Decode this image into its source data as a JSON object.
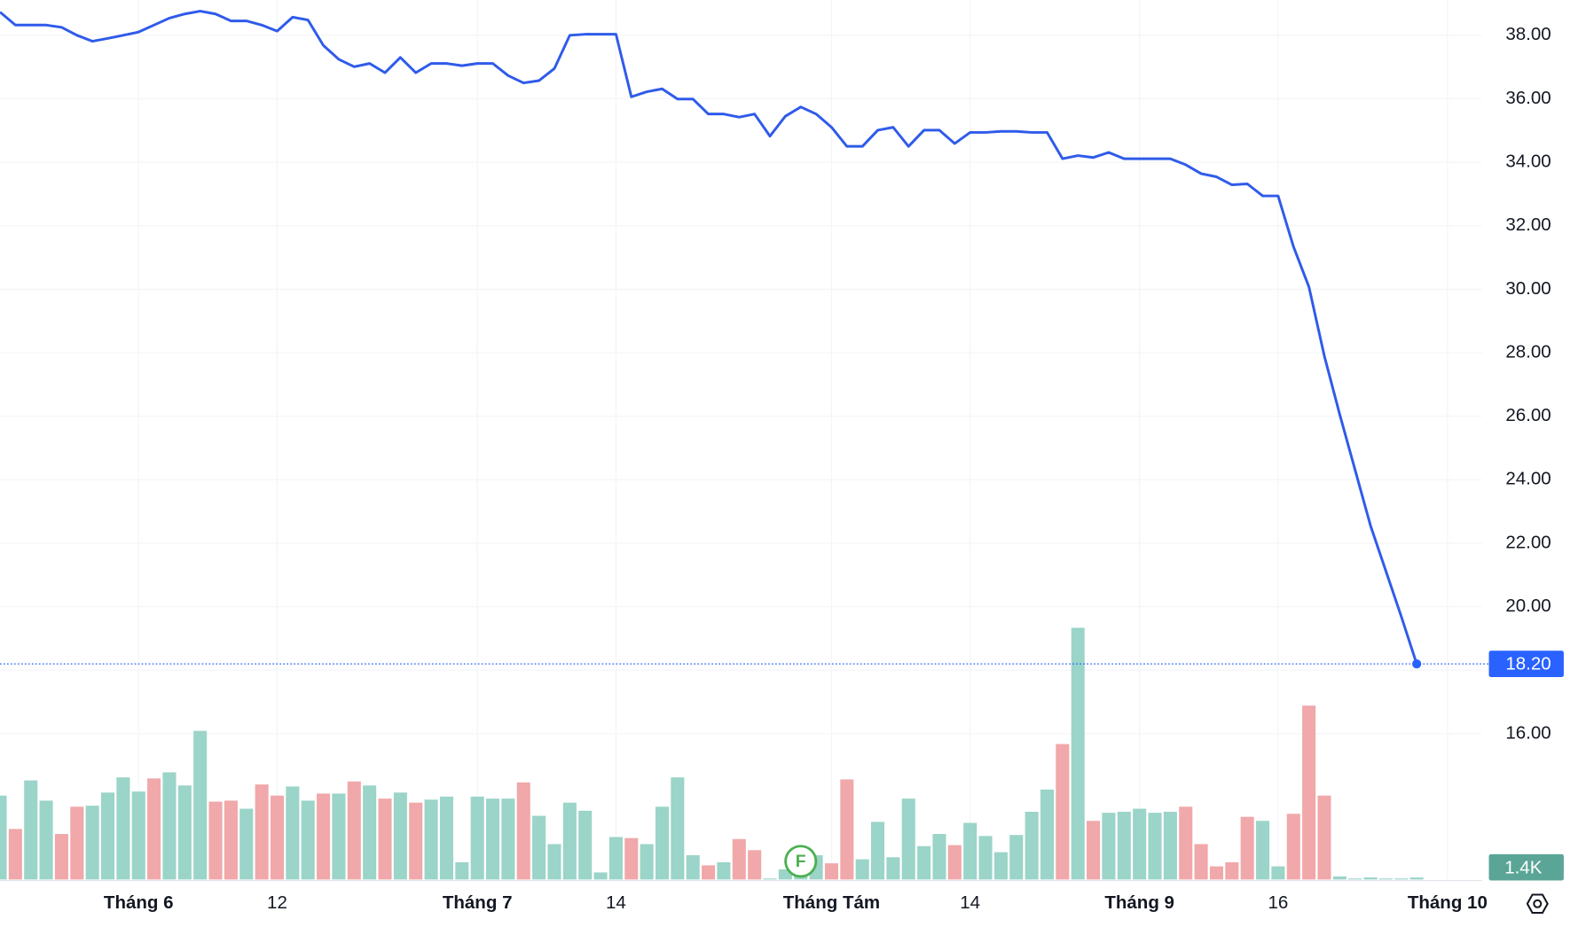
{
  "chart_data": [
    {
      "type": "line",
      "color": "#2f5bea",
      "marker_color": "#2962ff",
      "values": [
        38.73,
        38.32,
        38.32,
        38.32,
        38.25,
        38.0,
        37.81,
        37.9,
        38.0,
        38.1,
        38.32,
        38.54,
        38.67,
        38.76,
        38.67,
        38.45,
        38.45,
        38.32,
        38.13,
        38.57,
        38.48,
        37.68,
        37.24,
        37.01,
        37.11,
        36.82,
        37.3,
        36.82,
        37.11,
        37.11,
        37.04,
        37.11,
        37.11,
        36.73,
        36.5,
        36.57,
        36.95,
        38.0,
        38.03,
        38.03,
        38.03,
        36.06,
        36.22,
        36.31,
        35.99,
        35.99,
        35.52,
        35.52,
        35.42,
        35.52,
        34.82,
        35.45,
        35.74,
        35.52,
        35.1,
        34.5,
        34.5,
        35.01,
        35.1,
        34.5,
        35.01,
        35.01,
        34.59,
        34.94,
        34.94,
        34.97,
        34.97,
        34.94,
        34.94,
        34.11,
        34.21,
        34.15,
        34.31,
        34.11,
        34.11,
        34.11,
        34.11,
        33.92,
        33.64,
        33.54,
        33.29,
        33.32,
        32.94,
        32.94,
        31.34,
        30.07,
        27.9,
        26.06,
        24.31,
        22.55,
        21.12,
        19.69,
        18.2
      ],
      "last_value_label": "18.20",
      "ylim": [
        11.41,
        39.11
      ],
      "yticks": [
        {
          "value": 16,
          "label": "16.00"
        },
        {
          "value": 18,
          "label": "18.00"
        },
        {
          "value": 20,
          "label": "20.00"
        },
        {
          "value": 22,
          "label": "22.00"
        },
        {
          "value": 24,
          "label": "24.00"
        },
        {
          "value": 26,
          "label": "26.00"
        },
        {
          "value": 28,
          "label": "28.00"
        },
        {
          "value": 30,
          "label": "30.00"
        },
        {
          "value": 32,
          "label": "32.00"
        },
        {
          "value": 34,
          "label": "34.00"
        },
        {
          "value": 36,
          "label": "36.00"
        },
        {
          "value": 38,
          "label": "38.00"
        }
      ],
      "xlim": [
        0,
        95.9
      ],
      "xticks": [
        {
          "value": 9,
          "label": "Tháng 6"
        },
        {
          "value": 18,
          "label": "12"
        },
        {
          "value": 31,
          "label": "Tháng 7"
        },
        {
          "value": 40,
          "label": "14"
        },
        {
          "value": 54,
          "label": "Tháng Tám"
        },
        {
          "value": 63,
          "label": "14"
        },
        {
          "value": 74,
          "label": "Tháng 9"
        },
        {
          "value": 83,
          "label": "16"
        },
        {
          "value": 94,
          "label": "Tháng 10"
        }
      ],
      "grid": true,
      "event_marker": "F",
      "event_color": "#4caf50"
    },
    {
      "type": "bar",
      "up_color": "#9bd4c8",
      "down_color": "#f0a8aa",
      "last_color": "#5aa596",
      "values": [
        58100,
        35000,
        68600,
        54600,
        31500,
        50400,
        51100,
        60200,
        70700,
        60900,
        70000,
        74200,
        65100,
        102900,
        53900,
        54600,
        49000,
        65800,
        58100,
        64400,
        54600,
        59500,
        59500,
        67900,
        65100,
        56000,
        60200,
        53200,
        55300,
        57400,
        11900,
        57400,
        56000,
        56000,
        67200,
        44100,
        24500,
        53200,
        47600,
        4900,
        29400,
        28700,
        24500,
        50400,
        70700,
        16800,
        9800,
        11900,
        28000,
        20300,
        700,
        7000,
        15400,
        16800,
        11200,
        69300,
        14000,
        39900,
        15400,
        56000,
        23100,
        31500,
        23800,
        39200,
        30100,
        18900,
        30800,
        46900,
        62300,
        93800,
        174300,
        40600,
        46200,
        46900,
        49000,
        46200,
        46900,
        50400,
        24500,
        9100,
        11900,
        43400,
        40600,
        9100,
        45500,
        120400,
        58100,
        2100,
        700,
        1400,
        700,
        700,
        1400
      ],
      "down": [
        false,
        true,
        false,
        false,
        true,
        true,
        false,
        false,
        false,
        false,
        true,
        false,
        false,
        false,
        true,
        true,
        false,
        true,
        true,
        false,
        false,
        true,
        false,
        true,
        false,
        true,
        false,
        true,
        false,
        false,
        false,
        false,
        false,
        false,
        true,
        false,
        false,
        false,
        false,
        false,
        false,
        true,
        false,
        false,
        false,
        false,
        true,
        false,
        true,
        true,
        false,
        false,
        false,
        false,
        true,
        true,
        false,
        false,
        false,
        false,
        false,
        false,
        true,
        false,
        false,
        false,
        false,
        false,
        false,
        true,
        false,
        true,
        false,
        false,
        false,
        false,
        false,
        true,
        true,
        true,
        true,
        true,
        false,
        false,
        true,
        true,
        true,
        false,
        false,
        false,
        false,
        false,
        false
      ],
      "last_value_label": "1.4K",
      "ylim": [
        0,
        609000
      ]
    }
  ]
}
